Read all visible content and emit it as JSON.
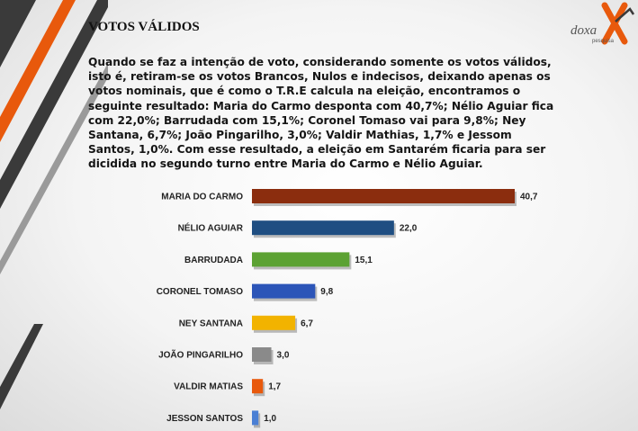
{
  "page": {
    "title": "VOTOS VÁLIDOS",
    "paragraph": "Quando se faz a intenção de voto, considerando somente os votos válidos, isto é, retiram-se os votos Brancos, Nulos e indecisos, deixando apenas os votos nominais, que é como o T.R.E calcula na eleição, encontramos o seguinte resultado: Maria do Carmo desponta com 40,7%; Nélio Aguiar fica com 22,0%; Barrudada com 15,1%; Coronel Tomaso vai para 9,8%; Ney Santana, 6,7%; João Pingarilho, 3,0%; Valdir Mathias, 1,7% e Jessom Santos, 1,0%. Com esse resultado, a eleição em Santarém ficaria para ser dicidida no segundo turno entre Maria do Carmo e Nélio Aguiar."
  },
  "logo": {
    "brand": "doxa",
    "sub": "pesquisa",
    "accent": "#e8590c"
  },
  "decor": {
    "stripe_dark": "#3a3a3a",
    "stripe_orange": "#e8590c",
    "stripe_gray": "#8a8a8a"
  },
  "chart_data": {
    "type": "bar",
    "orientation": "horizontal",
    "categories": [
      "MARIA DO CARMO",
      "NÉLIO AGUIAR",
      "BARRUDADA",
      "CORONEL TOMASO",
      "NEY SANTANA",
      "JOÃO PINGARILHO",
      "VALDIR MATIAS",
      "JESSON SANTOS"
    ],
    "values": [
      40.7,
      22.0,
      15.1,
      9.8,
      6.7,
      3.0,
      1.7,
      1.0
    ],
    "value_labels": [
      "40,7",
      "22,0",
      "15,1",
      "9,8",
      "6,7",
      "3,0",
      "1,7",
      "1,0"
    ],
    "colors": [
      "#8b2d0e",
      "#1f4e82",
      "#5ca233",
      "#2c55b8",
      "#f2b300",
      "#8a8a8a",
      "#e8590c",
      "#4a7fd4"
    ],
    "xlim": [
      0,
      40.7
    ],
    "grid": false,
    "legend": "none"
  }
}
